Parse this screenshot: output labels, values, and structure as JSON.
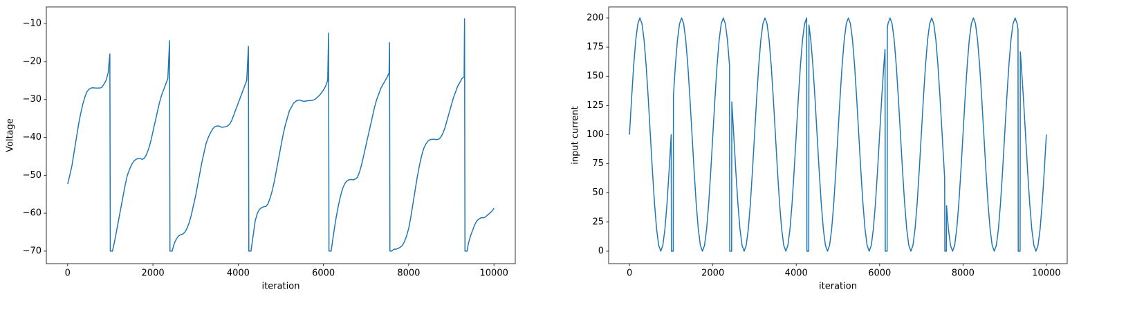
{
  "chart_data": [
    {
      "type": "line",
      "xlabel": "iteration",
      "ylabel": "Voltage",
      "color": "#1f77b4",
      "xlim": [
        -500,
        10500
      ],
      "ylim": [
        -73.3,
        -5.6
      ],
      "xticks": [
        0,
        2000,
        4000,
        6000,
        8000,
        10000
      ],
      "yticks": [
        {
          "value": -70,
          "label": "−70"
        },
        {
          "value": -60,
          "label": "−60"
        },
        {
          "value": -50,
          "label": "−50"
        },
        {
          "value": -40,
          "label": "−40"
        },
        {
          "value": -30,
          "label": "−30"
        },
        {
          "value": -20,
          "label": "−20"
        },
        {
          "value": -10,
          "label": "−10"
        }
      ],
      "x": [
        0,
        50,
        100,
        150,
        200,
        250,
        300,
        350,
        400,
        450,
        500,
        550,
        600,
        650,
        700,
        750,
        800,
        850,
        900,
        950,
        990,
        1000,
        1050,
        1100,
        1150,
        1200,
        1250,
        1300,
        1350,
        1400,
        1450,
        1500,
        1550,
        1600,
        1650,
        1700,
        1750,
        1800,
        1850,
        1900,
        1950,
        2000,
        2050,
        2100,
        2150,
        2200,
        2250,
        2300,
        2350,
        2390,
        2400,
        2450,
        2500,
        2550,
        2600,
        2650,
        2700,
        2750,
        2800,
        2850,
        2900,
        2950,
        3000,
        3050,
        3100,
        3150,
        3200,
        3250,
        3300,
        3350,
        3400,
        3450,
        3500,
        3550,
        3600,
        3650,
        3700,
        3750,
        3800,
        3850,
        3900,
        3950,
        4000,
        4050,
        4100,
        4150,
        4200,
        4240,
        4250,
        4300,
        4350,
        4400,
        4450,
        4500,
        4550,
        4600,
        4650,
        4700,
        4750,
        4800,
        4850,
        4900,
        4950,
        5000,
        5050,
        5100,
        5150,
        5200,
        5250,
        5300,
        5350,
        5400,
        5450,
        5500,
        5550,
        5600,
        5650,
        5700,
        5750,
        5800,
        5850,
        5900,
        5950,
        6000,
        6050,
        6100,
        6120,
        6130,
        6180,
        6200,
        6250,
        6300,
        6350,
        6400,
        6450,
        6500,
        6550,
        6600,
        6650,
        6700,
        6750,
        6800,
        6850,
        6900,
        6950,
        7000,
        7050,
        7100,
        7150,
        7200,
        7250,
        7300,
        7350,
        7400,
        7450,
        7500,
        7540,
        7550,
        7560,
        7600,
        7650,
        7700,
        7750,
        7800,
        7850,
        7900,
        7950,
        8000,
        8050,
        8100,
        8150,
        8200,
        8250,
        8300,
        8350,
        8400,
        8450,
        8500,
        8550,
        8600,
        8650,
        8700,
        8750,
        8800,
        8850,
        8900,
        8950,
        9000,
        9050,
        9100,
        9150,
        9200,
        9250,
        9300,
        9310,
        9320,
        9370,
        9400,
        9450,
        9500,
        9550,
        9600,
        9650,
        9700,
        9750,
        9800,
        9850,
        9900,
        9950,
        10000
      ],
      "values": [
        -52.3,
        -50,
        -47.5,
        -44,
        -40.5,
        -37,
        -34,
        -31.5,
        -29.5,
        -28,
        -27.3,
        -27,
        -26.9,
        -27,
        -27,
        -27,
        -26.8,
        -26,
        -25,
        -23,
        -18,
        -70,
        -70,
        -67.5,
        -64.5,
        -61.5,
        -58.5,
        -55.5,
        -52.5,
        -50,
        -48.5,
        -47.2,
        -46.3,
        -45.8,
        -45.6,
        -45.6,
        -45.8,
        -45.5,
        -44.5,
        -43,
        -41,
        -38.5,
        -36,
        -33.5,
        -31,
        -29,
        -27.5,
        -26,
        -24.5,
        -14.5,
        -70,
        -70,
        -68,
        -66.8,
        -66,
        -65.7,
        -65.5,
        -65,
        -64,
        -62.5,
        -60.5,
        -58,
        -55.5,
        -52.5,
        -49.5,
        -46.5,
        -44,
        -41.5,
        -40,
        -38.8,
        -37.8,
        -37.2,
        -37,
        -37,
        -37.3,
        -37.3,
        -37.2,
        -37,
        -36.5,
        -35.5,
        -34,
        -32.5,
        -31,
        -29.5,
        -28,
        -26.5,
        -25,
        -16,
        -70,
        -70,
        -66,
        -62,
        -60,
        -59,
        -58.5,
        -58.3,
        -58.2,
        -57.5,
        -56,
        -54,
        -51.5,
        -48.5,
        -45.5,
        -42.5,
        -39.5,
        -37,
        -35,
        -33,
        -32,
        -31,
        -30.5,
        -30.2,
        -30.2,
        -30.4,
        -30.5,
        -30.4,
        -30.3,
        -30.3,
        -30.2,
        -30,
        -29.5,
        -29,
        -28.3,
        -27.5,
        -26.5,
        -25,
        -12.5,
        -70,
        -70,
        -68.5,
        -64.5,
        -61,
        -58,
        -55.5,
        -53.5,
        -52.2,
        -51.5,
        -51.2,
        -51.1,
        -51.2,
        -51,
        -50.5,
        -49,
        -47,
        -44.5,
        -42,
        -39.5,
        -37,
        -34.5,
        -32,
        -30,
        -28.5,
        -27,
        -26,
        -25,
        -24,
        -23,
        -15,
        -70,
        -70,
        -69.5,
        -69.5,
        -69.3,
        -69,
        -68.5,
        -67.5,
        -66,
        -64,
        -61,
        -57.5,
        -54,
        -50.5,
        -47.5,
        -45,
        -43,
        -41.8,
        -41,
        -40.6,
        -40.5,
        -40.5,
        -40.6,
        -40.5,
        -40,
        -39,
        -37.5,
        -35.5,
        -33.5,
        -31.5,
        -29.5,
        -28,
        -26.5,
        -25.5,
        -24.5,
        -24,
        -8.7,
        -70,
        -70,
        -68,
        -66,
        -64.5,
        -63,
        -62,
        -61.5,
        -61.2,
        -61.2,
        -61,
        -60.5,
        -60,
        -59.5,
        -58.7
      ]
    },
    {
      "type": "line",
      "xlabel": "iteration",
      "ylabel": "input current",
      "color": "#1f77b4",
      "xlim": [
        -500,
        10500
      ],
      "ylim": [
        -10.7,
        209.5
      ],
      "xticks": [
        0,
        2000,
        4000,
        6000,
        8000,
        10000
      ],
      "yticks": [
        0,
        25,
        50,
        75,
        100,
        125,
        150,
        175,
        200
      ],
      "x": [
        0,
        50,
        100,
        150,
        200,
        250,
        300,
        350,
        400,
        450,
        500,
        550,
        600,
        650,
        700,
        750,
        800,
        850,
        900,
        950,
        1000,
        1005,
        1050,
        1055,
        1100,
        1150,
        1200,
        1250,
        1300,
        1350,
        1400,
        1450,
        1500,
        1550,
        1600,
        1650,
        1700,
        1750,
        1800,
        1850,
        1900,
        1950,
        2000,
        2050,
        2100,
        2150,
        2200,
        2250,
        2300,
        2350,
        2400,
        2405,
        2450,
        2455,
        2500,
        2550,
        2600,
        2650,
        2700,
        2750,
        2800,
        2850,
        2900,
        2950,
        3000,
        3050,
        3100,
        3150,
        3200,
        3250,
        3300,
        3350,
        3400,
        3450,
        3500,
        3550,
        3600,
        3650,
        3700,
        3750,
        3800,
        3850,
        3900,
        3950,
        4000,
        4050,
        4100,
        4150,
        4200,
        4250,
        4255,
        4300,
        4305,
        4350,
        4400,
        4450,
        4500,
        4550,
        4600,
        4650,
        4700,
        4750,
        4800,
        4850,
        4900,
        4950,
        5000,
        5050,
        5100,
        5150,
        5200,
        5250,
        5300,
        5350,
        5400,
        5450,
        5500,
        5550,
        5600,
        5650,
        5700,
        5750,
        5800,
        5850,
        5900,
        5950,
        6000,
        6050,
        6100,
        6130,
        6135,
        6180,
        6185,
        6200,
        6250,
        6300,
        6350,
        6400,
        6450,
        6500,
        6550,
        6600,
        6650,
        6700,
        6750,
        6800,
        6850,
        6900,
        6950,
        7000,
        7050,
        7100,
        7150,
        7200,
        7250,
        7300,
        7350,
        7400,
        7450,
        7500,
        7550,
        7560,
        7565,
        7600,
        7605,
        7650,
        7700,
        7750,
        7800,
        7850,
        7900,
        7950,
        8000,
        8050,
        8100,
        8150,
        8200,
        8250,
        8300,
        8350,
        8400,
        8450,
        8500,
        8550,
        8600,
        8650,
        8700,
        8750,
        8800,
        8850,
        8900,
        8950,
        9000,
        9050,
        9100,
        9150,
        9200,
        9250,
        9300,
        9320,
        9325,
        9370,
        9375,
        9400,
        9450,
        9500,
        9550,
        9600,
        9650,
        9700,
        9750,
        9800,
        9850,
        9900,
        9950,
        10000
      ],
      "values": [
        100,
        131,
        159,
        181,
        195,
        200,
        195,
        181,
        159,
        131,
        100,
        69,
        41,
        19,
        5,
        0,
        5,
        19,
        41,
        69,
        100,
        0,
        0,
        134,
        159,
        181,
        195,
        200,
        195,
        181,
        159,
        131,
        100,
        69,
        41,
        19,
        5,
        0,
        5,
        19,
        41,
        69,
        100,
        131,
        159,
        181,
        195,
        200,
        195,
        181,
        159,
        0,
        0,
        128,
        100,
        69,
        41,
        19,
        5,
        0,
        5,
        19,
        41,
        69,
        100,
        131,
        159,
        181,
        195,
        200,
        195,
        181,
        159,
        131,
        100,
        69,
        41,
        19,
        5,
        0,
        5,
        19,
        41,
        69,
        100,
        131,
        159,
        181,
        195,
        200,
        0,
        0,
        194,
        181,
        159,
        131,
        100,
        69,
        41,
        19,
        5,
        0,
        5,
        19,
        41,
        69,
        100,
        131,
        159,
        181,
        195,
        200,
        195,
        181,
        159,
        131,
        100,
        69,
        41,
        19,
        5,
        0,
        5,
        19,
        41,
        69,
        100,
        131,
        159,
        173,
        0,
        0,
        191,
        195,
        200,
        195,
        181,
        159,
        131,
        100,
        69,
        41,
        19,
        5,
        0,
        5,
        19,
        41,
        69,
        100,
        131,
        159,
        181,
        195,
        200,
        195,
        181,
        159,
        131,
        100,
        69,
        63,
        0,
        0,
        39,
        19,
        5,
        0,
        5,
        19,
        41,
        69,
        100,
        131,
        159,
        181,
        195,
        200,
        195,
        181,
        159,
        131,
        100,
        69,
        41,
        19,
        5,
        0,
        5,
        19,
        41,
        69,
        100,
        131,
        159,
        181,
        195,
        200,
        195,
        190,
        0,
        0,
        171,
        159,
        131,
        100,
        69,
        41,
        19,
        5,
        0,
        5,
        19,
        41,
        69,
        100
      ]
    }
  ]
}
